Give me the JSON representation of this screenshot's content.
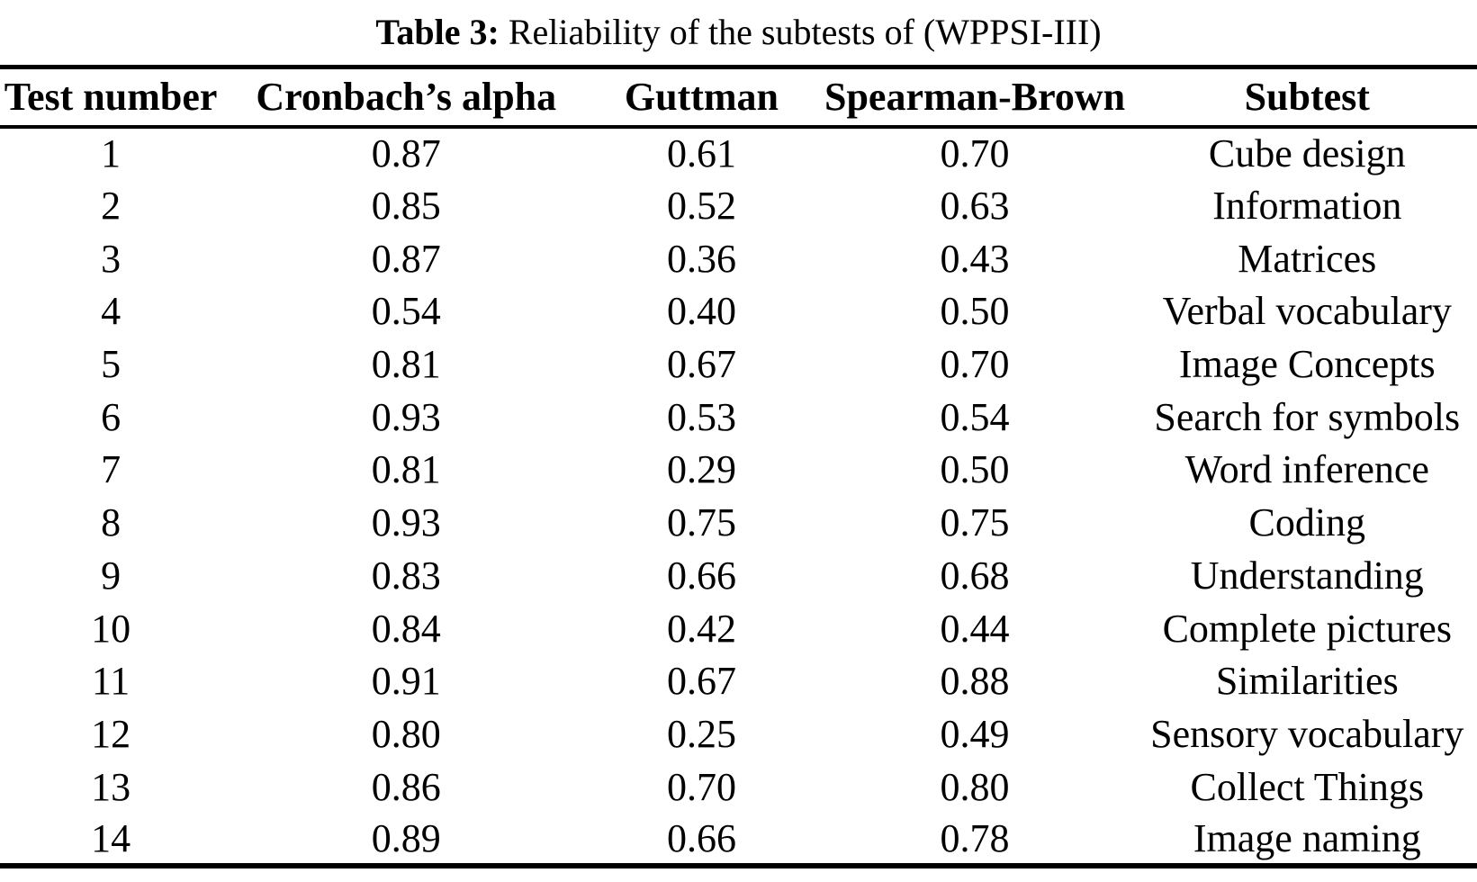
{
  "caption": {
    "label": "Table 3:",
    "text": "Reliability of the subtests of (WPPSI-III)"
  },
  "table": {
    "columns": [
      "Test number",
      "Cronbach’s alpha",
      "Guttman",
      "Spearman-Brown",
      "Subtest"
    ],
    "rows": [
      [
        "1",
        "0.87",
        "0.61",
        "0.70",
        "Cube design"
      ],
      [
        "2",
        "0.85",
        "0.52",
        "0.63",
        "Information"
      ],
      [
        "3",
        "0.87",
        "0.36",
        "0.43",
        "Matrices"
      ],
      [
        "4",
        "0.54",
        "0.40",
        "0.50",
        "Verbal vocabulary"
      ],
      [
        "5",
        "0.81",
        "0.67",
        "0.70",
        "Image Concepts"
      ],
      [
        "6",
        "0.93",
        "0.53",
        "0.54",
        "Search for symbols"
      ],
      [
        "7",
        "0.81",
        "0.29",
        "0.50",
        "Word inference"
      ],
      [
        "8",
        "0.93",
        "0.75",
        "0.75",
        "Coding"
      ],
      [
        "9",
        "0.83",
        "0.66",
        "0.68",
        "Understanding"
      ],
      [
        "10",
        "0.84",
        "0.42",
        "0.44",
        "Complete pictures"
      ],
      [
        "11",
        "0.91",
        "0.67",
        "0.88",
        "Similarities"
      ],
      [
        "12",
        "0.80",
        "0.25",
        "0.49",
        "Sensory vocabulary"
      ],
      [
        "13",
        "0.86",
        "0.70",
        "0.80",
        "Collect Things"
      ],
      [
        "14",
        "0.89",
        "0.66",
        "0.78",
        "Image naming"
      ]
    ]
  },
  "colors": {
    "text": "#000000",
    "background": "#ffffff",
    "rule": "#000000"
  }
}
